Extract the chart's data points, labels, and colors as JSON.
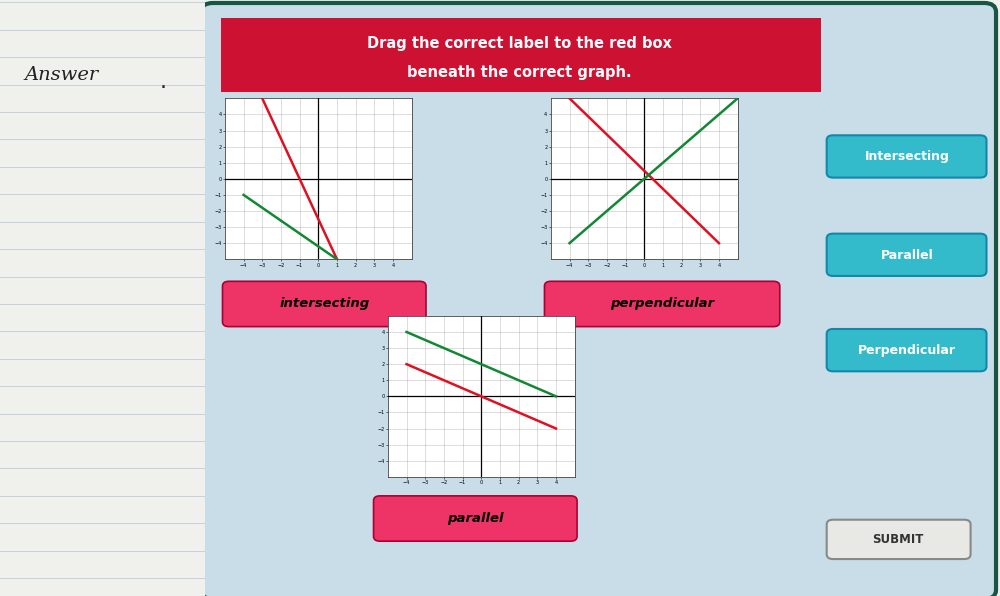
{
  "title_line1": "Drag the correct label to the red box",
  "title_line2": "beneath the correct graph.",
  "header_bg": "#cc1133",
  "header_text_color": "#ffffff",
  "panel_bg": "#c8dde8",
  "border_color": "#1a5544",
  "label_intersecting": "Intersecting",
  "label_parallel": "Parallel",
  "label_perpendicular": "Perpendicular",
  "answer_intersecting": "intersecting",
  "answer_parallel": "parallel",
  "answer_perpendicular": "perpendicular",
  "submit_text": "SUBMIT",
  "right_btn_color": "#33bbcc",
  "right_btn_text": "#ffffff",
  "answer_box_color": "#ee3366",
  "notebook_line_color": "#aabbcc",
  "notebook_bg": "#f8f8f4",
  "graph_bg": "#ffffff",
  "graph_grid_color": "#999999",
  "line_red": "#dd1122",
  "line_green": "#118833",
  "graph1_lines": [
    {
      "x": [
        -3,
        1
      ],
      "y": [
        5,
        -5
      ],
      "color": "#dd1122"
    },
    {
      "x": [
        -4,
        1
      ],
      "y": [
        -1,
        -5
      ],
      "color": "#118833"
    }
  ],
  "graph2_lines": [
    {
      "x": [
        -4,
        4
      ],
      "y": [
        5,
        -4
      ],
      "color": "#dd1122"
    },
    {
      "x": [
        -4,
        5
      ],
      "y": [
        -4,
        5
      ],
      "color": "#118833"
    }
  ],
  "graph3_lines": [
    {
      "x": [
        -4,
        4
      ],
      "y": [
        2,
        -2
      ],
      "color": "#dd1122"
    },
    {
      "x": [
        -4,
        4
      ],
      "y": [
        4,
        0
      ],
      "color": "#118833"
    }
  ]
}
